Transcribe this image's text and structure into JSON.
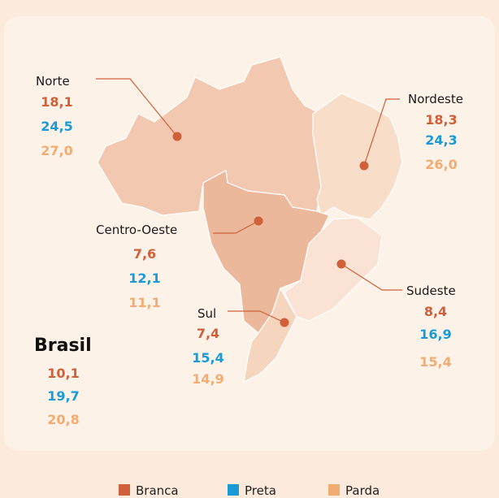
{
  "legend": [
    {
      "name": "Branca",
      "color": "#d0603a"
    },
    {
      "name": "Preta",
      "color": "#1a9ad6"
    },
    {
      "name": "Parda",
      "color": "#f2ac72"
    }
  ],
  "regions": [
    {
      "name": "Norte",
      "values": [
        "18,1",
        "24,5",
        "27,0"
      ]
    },
    {
      "name": "Nordeste",
      "values": [
        "18,3",
        "24,3",
        "26,0"
      ]
    },
    {
      "name": "Centro-Oeste",
      "values": [
        "7,6",
        "12,1",
        "11,1"
      ]
    },
    {
      "name": "Sudeste",
      "values": [
        "8,4",
        "16,9",
        "15,4"
      ]
    },
    {
      "name": "Sul",
      "values": [
        "7,4",
        "15,4",
        "14,9"
      ]
    }
  ],
  "total": {
    "name": "Brasil",
    "values": [
      "10,1",
      "19,7",
      "20,8"
    ]
  }
}
